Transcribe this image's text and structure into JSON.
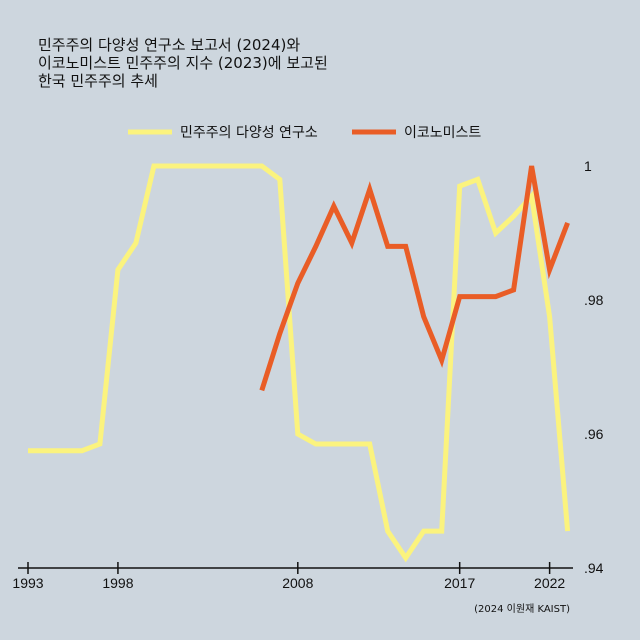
{
  "colors": {
    "background": "#cdd6de",
    "series_vdem": "#fbf37e",
    "series_eiu": "#e95d26",
    "axis": "#111111"
  },
  "chart_data": {
    "type": "line",
    "title_lines": [
      "민주주의 다양성 연구소 보고서 (2024)와",
      "이코노미스트 민주주의 지수 (2023)에 보고된",
      "한국 민주주의 추세"
    ],
    "source": "(2024 이원재 KAIST)",
    "legend_position": "top",
    "grid": false,
    "xlim": [
      1993,
      2023.3
    ],
    "ylim": [
      0.94,
      1.0
    ],
    "x_ticks": [
      1993,
      1998,
      2008,
      2017,
      2022
    ],
    "x_tick_labels": [
      "1993",
      "1998",
      "2008",
      "2017",
      "2022"
    ],
    "y_ticks": [
      1.0,
      0.98,
      0.96,
      0.94
    ],
    "y_tick_labels": [
      "1",
      ".98",
      ".96",
      ".94"
    ],
    "series": [
      {
        "name": "민주주의 다양성 연구소",
        "color_key": "series_vdem",
        "x": [
          1993,
          1996,
          1997,
          1998,
          1999,
          2000,
          2001,
          2002,
          2003,
          2004,
          2005,
          2006,
          2007,
          2008,
          2009,
          2010,
          2011,
          2012,
          2013,
          2014,
          2015,
          2016,
          2017,
          2018,
          2019,
          2020,
          2021,
          2022,
          2023
        ],
        "values": [
          0.9575,
          0.9575,
          0.9585,
          0.9845,
          0.9885,
          1.0,
          1.0,
          1.0,
          1.0,
          1.0,
          1.0,
          1.0,
          0.998,
          0.96,
          0.9585,
          0.9585,
          0.9585,
          0.9585,
          0.9455,
          0.9415,
          0.9455,
          0.9455,
          0.997,
          0.998,
          0.99,
          0.9925,
          0.9955,
          0.9775,
          0.9455
        ]
      },
      {
        "name": "이코노미스트",
        "color_key": "series_eiu",
        "x": [
          2006,
          2007,
          2008,
          2009,
          2010,
          2011,
          2012,
          2013,
          2014,
          2015,
          2016,
          2017,
          2018,
          2019,
          2020,
          2021,
          2022,
          2023
        ],
        "values": [
          0.9665,
          0.975,
          0.9825,
          0.988,
          0.994,
          0.9885,
          0.9965,
          0.988,
          0.988,
          0.9775,
          0.971,
          0.9805,
          0.9805,
          0.9805,
          0.9815,
          1.0,
          0.9845,
          0.9915
        ]
      }
    ]
  }
}
